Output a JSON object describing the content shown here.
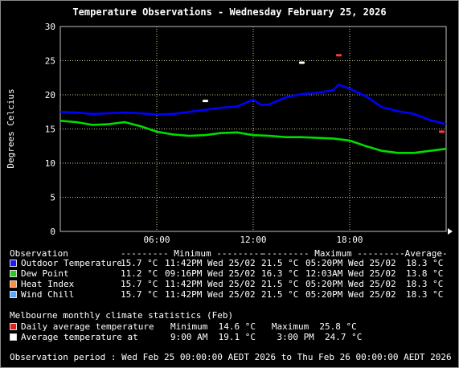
{
  "title": "Temperature Observations - Wednesday February 25, 2026",
  "chart_data": {
    "type": "line",
    "title": "Temperature Observations - Wednesday February 25, 2026",
    "ylabel": "Degrees Celcius",
    "xlabel": "",
    "x_range_hours": [
      0,
      24
    ],
    "ylim": [
      0,
      30
    ],
    "y_ticks": [
      "0",
      "5",
      "10",
      "15",
      "20",
      "25",
      "30"
    ],
    "x_ticks": [
      {
        "hour": 6,
        "label": "06:00"
      },
      {
        "hour": 12,
        "label": "12:00"
      },
      {
        "hour": 18,
        "label": "18:00"
      }
    ],
    "grid": true,
    "series": [
      {
        "name": "Outdoor Temperature",
        "color": "#0000ff",
        "points": [
          [
            0,
            17.5
          ],
          [
            1,
            17.4
          ],
          [
            2,
            17.2
          ],
          [
            3,
            17.3
          ],
          [
            4,
            17.4
          ],
          [
            5,
            17.3
          ],
          [
            6,
            17.1
          ],
          [
            7,
            17.2
          ],
          [
            8,
            17.5
          ],
          [
            9,
            17.8
          ],
          [
            10,
            18.1
          ],
          [
            11,
            18.3
          ],
          [
            12,
            19.3
          ],
          [
            12.5,
            18.5
          ],
          [
            13,
            18.6
          ],
          [
            14,
            19.6
          ],
          [
            15,
            20.1
          ],
          [
            16,
            20.3
          ],
          [
            17,
            20.7
          ],
          [
            17.3,
            21.5
          ],
          [
            18,
            20.9
          ],
          [
            19,
            19.8
          ],
          [
            20,
            18.2
          ],
          [
            21,
            17.6
          ],
          [
            22,
            17.2
          ],
          [
            23,
            16.3
          ],
          [
            24,
            15.7
          ]
        ]
      },
      {
        "name": "Dew Point",
        "color": "#00dd00",
        "points": [
          [
            0,
            16.2
          ],
          [
            1,
            16.0
          ],
          [
            2,
            15.6
          ],
          [
            3,
            15.7
          ],
          [
            4,
            16.0
          ],
          [
            5,
            15.4
          ],
          [
            6,
            14.6
          ],
          [
            7,
            14.2
          ],
          [
            8,
            14.0
          ],
          [
            9,
            14.1
          ],
          [
            10,
            14.4
          ],
          [
            11,
            14.5
          ],
          [
            12,
            14.1
          ],
          [
            13,
            14.0
          ],
          [
            14,
            13.8
          ],
          [
            15,
            13.8
          ],
          [
            16,
            13.7
          ],
          [
            17,
            13.6
          ],
          [
            18,
            13.3
          ],
          [
            19,
            12.5
          ],
          [
            20,
            11.8
          ],
          [
            21,
            11.5
          ],
          [
            22,
            11.5
          ],
          [
            23,
            11.8
          ],
          [
            24,
            12.1
          ]
        ]
      },
      {
        "name": "Heat Index",
        "color": "#ff8c40",
        "points": []
      },
      {
        "name": "Wind Chill",
        "color": "#55aaff",
        "points": []
      }
    ],
    "markers": [
      {
        "label": "Daily average temperature",
        "color": "#ff3b3b",
        "points": [
          [
            17.3,
            25.8
          ],
          [
            23.7,
            14.6
          ]
        ]
      },
      {
        "label": "Average temperature at",
        "color": "#ffffff",
        "points": [
          [
            9.0,
            19.1
          ],
          [
            15.0,
            24.7
          ]
        ]
      }
    ]
  },
  "legend": {
    "headers": {
      "observation": "Observation",
      "minimum": "--------- Minimum ---------",
      "maximum": "--------- Maximum ---------",
      "average": "-Average-"
    },
    "rows": [
      {
        "name": "Outdoor Temperature",
        "color": "#1a1aff",
        "min": "15.7 °C",
        "min_time": "11:42PM Wed 25/02",
        "max": "21.5 °C",
        "max_time": "05:20PM Wed 25/02",
        "avg": "18.3 °C"
      },
      {
        "name": "Dew Point",
        "color": "#22cc22",
        "min": "11.2 °C",
        "min_time": "09:16PM Wed 25/02",
        "max": "16.3 °C",
        "max_time": "12:03AM Wed 25/02",
        "avg": "13.8 °C"
      },
      {
        "name": "Heat Index",
        "color": "#ff8c40",
        "min": "15.7 °C",
        "min_time": "11:42PM Wed 25/02",
        "max": "21.5 °C",
        "max_time": "05:20PM Wed 25/02",
        "avg": "18.3 °C"
      },
      {
        "name": "Wind Chill",
        "color": "#55aaff",
        "min": "15.7 °C",
        "min_time": "11:42PM Wed 25/02",
        "max": "21.5 °C",
        "max_time": "05:20PM Wed 25/02",
        "avg": "18.3 °C"
      }
    ]
  },
  "climate": {
    "heading": "Melbourne monthly climate statistics (Feb)",
    "rows": [
      {
        "label": "Daily average temperature",
        "color": "#dd2222",
        "text": "Minimum  14.6 °C   Maximum  25.8 °C"
      },
      {
        "label": "Average temperature at",
        "color": "#ffffff",
        "text": "9:00 AM  19.1 °C    3:00 PM  24.7 °C"
      }
    ]
  },
  "footer": "Observation period : Wed Feb 25 00:00:00 AEDT 2026 to Thu Feb 26 00:00:00 AEDT 2026"
}
